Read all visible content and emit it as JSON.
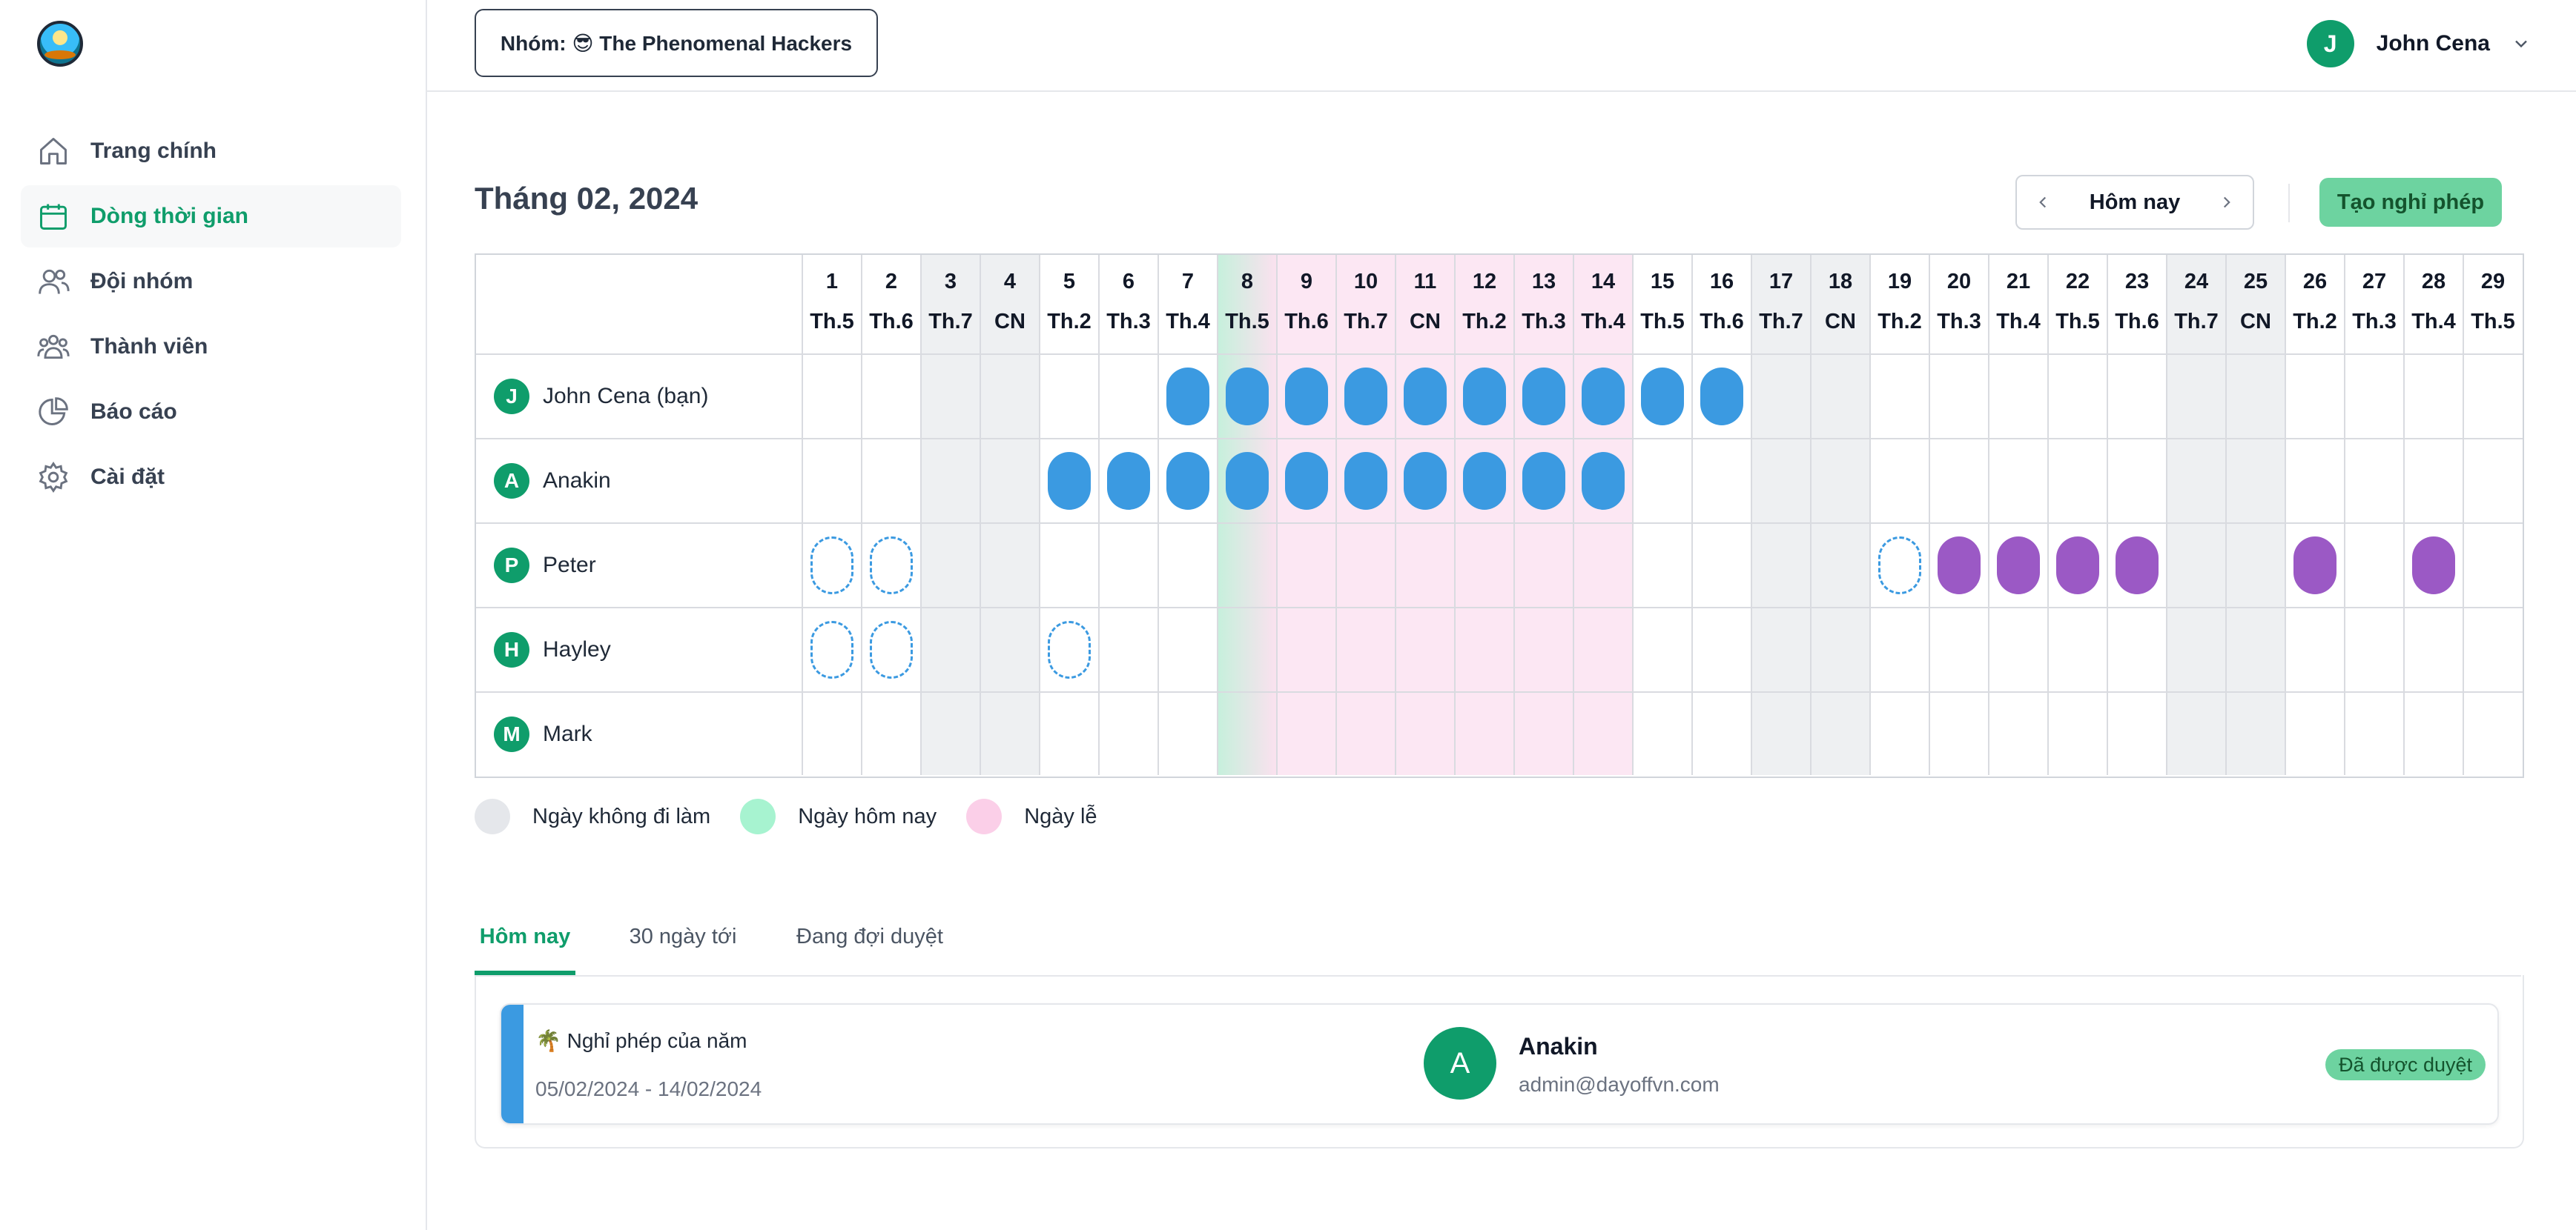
{
  "sidebar": {
    "items": [
      {
        "label": "Trang chính",
        "icon": "home-icon",
        "active": false
      },
      {
        "label": "Dòng thời gian",
        "icon": "calendar-icon",
        "active": true
      },
      {
        "label": "Đội nhóm",
        "icon": "users-icon",
        "active": false
      },
      {
        "label": "Thành viên",
        "icon": "members-icon",
        "active": false
      },
      {
        "label": "Báo cáo",
        "icon": "pie-chart-icon",
        "active": false
      },
      {
        "label": "Cài đặt",
        "icon": "gear-icon",
        "active": false
      }
    ]
  },
  "header": {
    "team_label": "Nhóm: 😎 The Phenomenal Hackers",
    "user_initial": "J",
    "user_name": "John Cena"
  },
  "timeline": {
    "month_title": "Tháng 02, 2024",
    "today_label": "Hôm nay",
    "create_label": "Tạo nghỉ phép",
    "today_day": 8,
    "holiday_days": [
      9,
      10,
      11,
      12,
      13,
      14
    ],
    "off_days": [
      3,
      4,
      17,
      18,
      24,
      25
    ],
    "days": [
      {
        "num": "1",
        "wd": "Th.5"
      },
      {
        "num": "2",
        "wd": "Th.6"
      },
      {
        "num": "3",
        "wd": "Th.7"
      },
      {
        "num": "4",
        "wd": "CN"
      },
      {
        "num": "5",
        "wd": "Th.2"
      },
      {
        "num": "6",
        "wd": "Th.3"
      },
      {
        "num": "7",
        "wd": "Th.4"
      },
      {
        "num": "8",
        "wd": "Th.5"
      },
      {
        "num": "9",
        "wd": "Th.6"
      },
      {
        "num": "10",
        "wd": "Th.7"
      },
      {
        "num": "11",
        "wd": "CN"
      },
      {
        "num": "12",
        "wd": "Th.2"
      },
      {
        "num": "13",
        "wd": "Th.3"
      },
      {
        "num": "14",
        "wd": "Th.4"
      },
      {
        "num": "15",
        "wd": "Th.5"
      },
      {
        "num": "16",
        "wd": "Th.6"
      },
      {
        "num": "17",
        "wd": "Th.7"
      },
      {
        "num": "18",
        "wd": "CN"
      },
      {
        "num": "19",
        "wd": "Th.2"
      },
      {
        "num": "20",
        "wd": "Th.3"
      },
      {
        "num": "21",
        "wd": "Th.4"
      },
      {
        "num": "22",
        "wd": "Th.5"
      },
      {
        "num": "23",
        "wd": "Th.6"
      },
      {
        "num": "24",
        "wd": "Th.7"
      },
      {
        "num": "25",
        "wd": "CN"
      },
      {
        "num": "26",
        "wd": "Th.2"
      },
      {
        "num": "27",
        "wd": "Th.3"
      },
      {
        "num": "28",
        "wd": "Th.4"
      },
      {
        "num": "29",
        "wd": "Th.5"
      }
    ],
    "members": [
      {
        "initial": "J",
        "name": "John Cena (bạn)",
        "leaves": [
          {
            "type": "blue",
            "days": [
              7,
              8,
              9,
              10,
              11,
              12,
              13,
              14,
              15,
              16
            ]
          }
        ]
      },
      {
        "initial": "A",
        "name": "Anakin",
        "leaves": [
          {
            "type": "blue",
            "days": [
              5,
              6,
              7,
              8,
              9,
              10,
              11,
              12,
              13,
              14
            ]
          }
        ]
      },
      {
        "initial": "P",
        "name": "Peter",
        "leaves": [
          {
            "type": "pending",
            "days": [
              1,
              2,
              19
            ]
          },
          {
            "type": "purple",
            "days": [
              20,
              21,
              22,
              23,
              26,
              28
            ]
          }
        ]
      },
      {
        "initial": "H",
        "name": "Hayley",
        "leaves": [
          {
            "type": "pending",
            "days": [
              1,
              2,
              5
            ]
          }
        ]
      },
      {
        "initial": "M",
        "name": "Mark",
        "leaves": []
      }
    ],
    "colors": {
      "off": "#eef0f2",
      "today_from": "#c6f0dc",
      "today_to": "#fbe1ef",
      "holiday": "#fce7f3",
      "blue": "#3b9ae1",
      "purple": "#9b59c5"
    }
  },
  "legend": {
    "items": [
      {
        "label": "Ngày không đi làm",
        "color": "#e5e7eb"
      },
      {
        "label": "Ngày hôm nay",
        "color": "#a7f3d0"
      },
      {
        "label": "Ngày lễ",
        "color": "#fbcfe8"
      }
    ]
  },
  "tabs": [
    {
      "label": "Hôm nay",
      "active": true
    },
    {
      "label": "30 ngày tới",
      "active": false
    },
    {
      "label": "Đang đợi duyệt",
      "active": false
    }
  ],
  "leave_card": {
    "type_label": "🌴 Nghỉ phép của năm",
    "date_range": "05/02/2024 - 14/02/2024",
    "avatar_initial": "A",
    "name": "Anakin",
    "email": "admin@dayoffvn.com",
    "status": "Đã được duyệt"
  }
}
